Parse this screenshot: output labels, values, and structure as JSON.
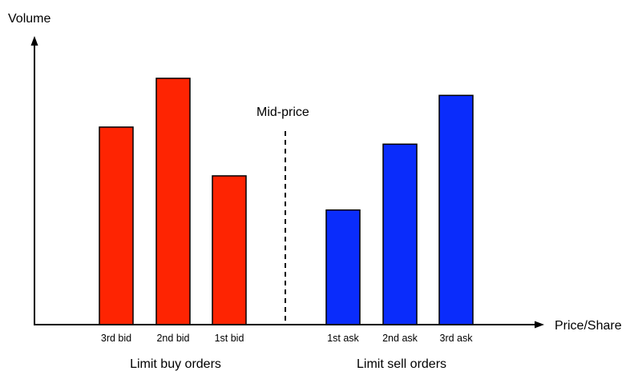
{
  "chart_data": {
    "type": "bar",
    "title": "",
    "ylabel": "Volume",
    "xlabel": "Price/Share",
    "ylim": [
      0,
      10
    ],
    "grid": false,
    "categories": [
      "3rd bid",
      "2nd bid",
      "1st bid",
      "1st ask",
      "2nd ask",
      "3rd ask"
    ],
    "series": [
      {
        "values": [
          8.1,
          10.1,
          6.1,
          null,
          null,
          null
        ],
        "color": "#fe2402"
      },
      {
        "values": [
          null,
          null,
          null,
          4.7,
          7.4,
          9.4
        ],
        "color": "#0a2cfb"
      }
    ],
    "groups": [
      {
        "label": "Limit buy orders",
        "categories": [
          "3rd bid",
          "2nd bid",
          "1st bid"
        ]
      },
      {
        "label": "Limit sell orders",
        "categories": [
          "1st ask",
          "2nd ask",
          "3rd ask"
        ]
      }
    ],
    "annotations": [
      {
        "text": "Mid-price",
        "between": [
          "1st bid",
          "1st ask"
        ],
        "style": "dashed vertical line"
      }
    ]
  }
}
